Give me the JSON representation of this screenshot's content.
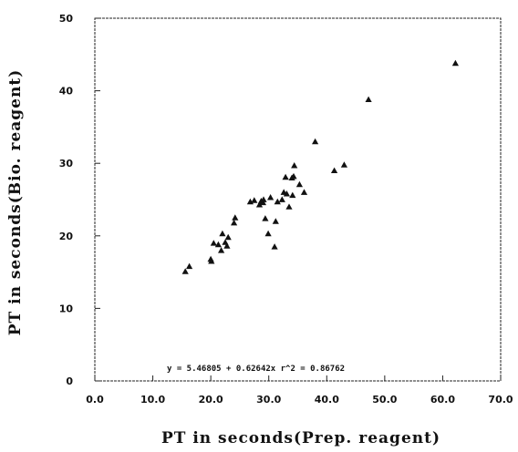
{
  "chart_data": {
    "type": "scatter",
    "xlabel": "PT  in  seconds(Prep.  reagent)",
    "ylabel": "PT  in  seconds(Bio.  reagent)",
    "xlim": [
      0,
      70
    ],
    "ylim": [
      0,
      50
    ],
    "x_ticks": [
      "0.0",
      "10.0",
      "20.0",
      "30.0",
      "40.0",
      "50.0",
      "60.0",
      "70.0"
    ],
    "y_ticks": [
      "0",
      "10",
      "20",
      "30",
      "40",
      "50"
    ],
    "grid": false,
    "marker": "triangle",
    "marker_color": "#111111",
    "annotation": "y = 5.46805 + 0.62642x    r^2 = 0.86762",
    "points": [
      [
        15.6,
        15.1
      ],
      [
        16.3,
        15.8
      ],
      [
        20.0,
        16.8
      ],
      [
        20.1,
        16.5
      ],
      [
        20.5,
        19.0
      ],
      [
        21.3,
        18.8
      ],
      [
        21.8,
        18.0
      ],
      [
        22.0,
        20.3
      ],
      [
        22.5,
        19.1
      ],
      [
        22.8,
        18.6
      ],
      [
        23.0,
        19.8
      ],
      [
        24.0,
        21.8
      ],
      [
        24.2,
        22.5
      ],
      [
        26.8,
        24.7
      ],
      [
        27.5,
        24.9
      ],
      [
        28.4,
        24.3
      ],
      [
        28.7,
        24.8
      ],
      [
        29.0,
        24.6
      ],
      [
        29.1,
        25.0
      ],
      [
        29.4,
        22.4
      ],
      [
        29.9,
        20.3
      ],
      [
        30.3,
        25.3
      ],
      [
        31.0,
        18.5
      ],
      [
        31.2,
        22.0
      ],
      [
        31.5,
        24.7
      ],
      [
        32.3,
        25.0
      ],
      [
        32.6,
        26.0
      ],
      [
        32.9,
        28.1
      ],
      [
        33.1,
        25.8
      ],
      [
        33.5,
        24.0
      ],
      [
        34.0,
        28.0
      ],
      [
        34.1,
        25.6
      ],
      [
        34.3,
        28.2
      ],
      [
        34.4,
        29.7
      ],
      [
        35.3,
        27.1
      ],
      [
        36.1,
        26.0
      ],
      [
        38.0,
        33.0
      ],
      [
        41.3,
        29.0
      ],
      [
        43.0,
        29.8
      ],
      [
        47.2,
        38.8
      ],
      [
        62.2,
        43.8
      ]
    ]
  }
}
